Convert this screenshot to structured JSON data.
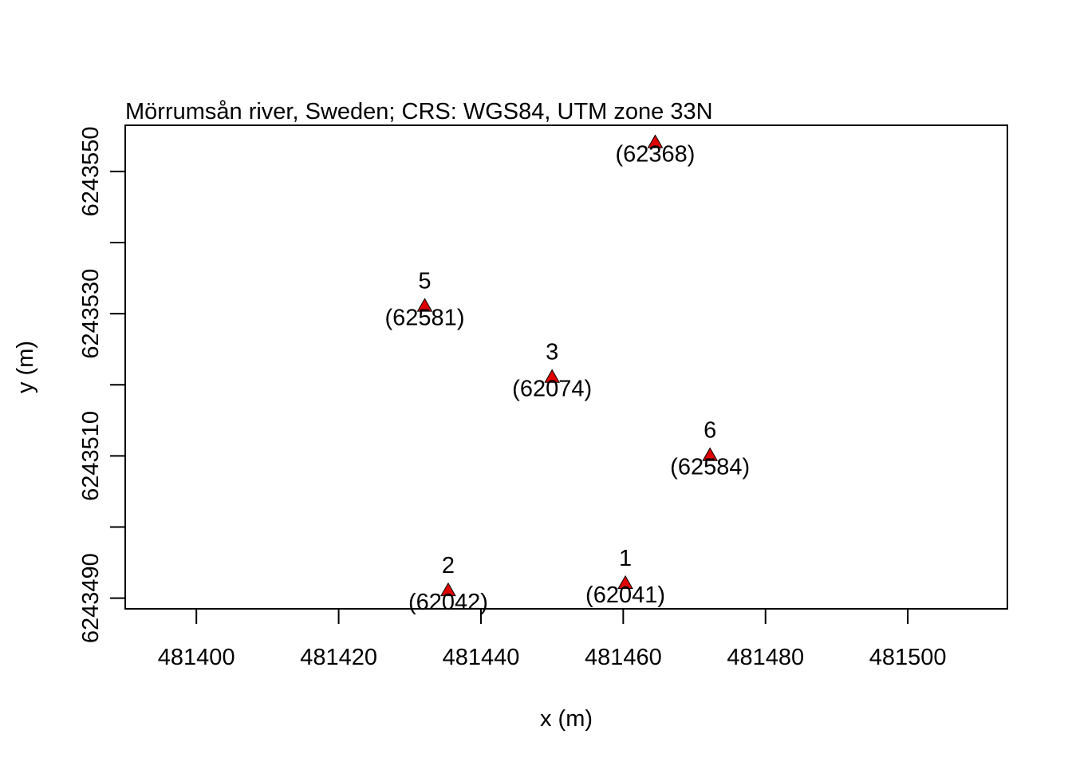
{
  "chart_data": {
    "type": "scatter",
    "title": "Mörrumsån river, Sweden; CRS: WGS84, UTM zone 33N",
    "xlabel": "x (m)",
    "ylabel": "y (m)",
    "xlim": [
      481390,
      481514
    ],
    "ylim": [
      6243488.5,
      6243556.5
    ],
    "x_ticks": [
      481400,
      481420,
      481440,
      481460,
      481480,
      481500
    ],
    "y_ticks": [
      6243490,
      6243500,
      6243510,
      6243520,
      6243530,
      6243540,
      6243550
    ],
    "y_tick_labels": [
      6243490,
      6243510,
      6243530,
      6243550
    ],
    "grid": false,
    "marker": "triangle",
    "marker_color": "#e00000",
    "points": [
      {
        "x": 481460.3,
        "y": 6243492.1,
        "label": "1",
        "id": "(62041)"
      },
      {
        "x": 481435.4,
        "y": 6243491.1,
        "label": "2",
        "id": "(62042)"
      },
      {
        "x": 481450.0,
        "y": 6243521.1,
        "label": "3",
        "id": "(62074)"
      },
      {
        "x": 481464.5,
        "y": 6243554.1,
        "label": "",
        "id": "(62368)"
      },
      {
        "x": 481432.1,
        "y": 6243531.1,
        "label": "5",
        "id": "(62581)"
      },
      {
        "x": 481472.2,
        "y": 6243510.1,
        "label": "6",
        "id": "(62584)"
      }
    ]
  }
}
